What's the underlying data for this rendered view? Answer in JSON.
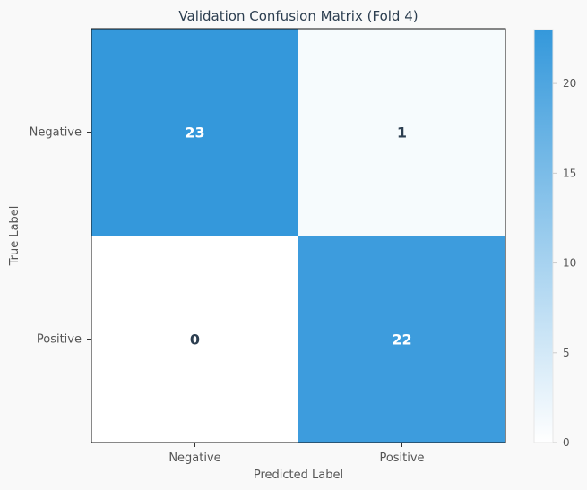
{
  "chart_data": {
    "type": "heatmap",
    "title": "Validation Confusion Matrix (Fold 4)",
    "xlabel": "Predicted Label",
    "ylabel": "True Label",
    "x_categories": [
      "Negative",
      "Positive"
    ],
    "y_categories": [
      "Negative",
      "Positive"
    ],
    "values": [
      [
        23,
        1
      ],
      [
        0,
        22
      ]
    ],
    "colorbar": {
      "min": 0,
      "max": 23,
      "ticks": [
        0,
        5,
        10,
        15,
        20
      ]
    },
    "colors": {
      "background": "#f9f9f9",
      "low": "#ffffff",
      "high": "#3498db",
      "text_dark": "#2c3e50",
      "text_light": "#ffffff",
      "axis_text": "#555555"
    }
  }
}
